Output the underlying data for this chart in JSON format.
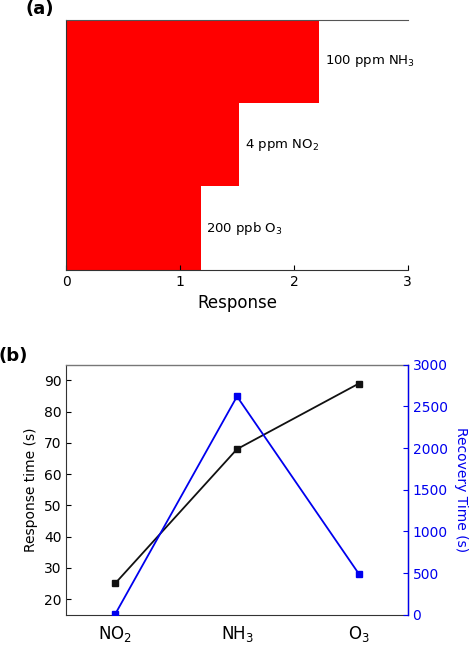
{
  "panel_a": {
    "labels": [
      "100 ppm NH$_3$",
      "4 ppm NO$_2$",
      "200 ppb O$_3$"
    ],
    "values": [
      2.22,
      1.52,
      1.18
    ],
    "bar_color": "#FF0000",
    "xlim": [
      0,
      3
    ],
    "xticks": [
      0,
      1,
      2,
      3
    ],
    "xlabel": "Response",
    "panel_label": "(a)"
  },
  "panel_b": {
    "categories": [
      "NO$_2$",
      "NH$_3$",
      "O$_3$"
    ],
    "response_time": [
      25,
      68,
      89
    ],
    "recovery_time": [
      5,
      2620,
      490
    ],
    "left_ylabel": "Response time (s)",
    "right_ylabel": "Recovery Time (s)",
    "left_ylim": [
      15,
      95
    ],
    "left_yticks": [
      20,
      30,
      40,
      50,
      60,
      70,
      80,
      90
    ],
    "right_ylim": [
      0,
      3000
    ],
    "right_yticks": [
      0,
      500,
      1000,
      1500,
      2000,
      2500,
      3000
    ],
    "black_color": "#111111",
    "blue_color": "#0000EE",
    "panel_label": "(b)"
  }
}
